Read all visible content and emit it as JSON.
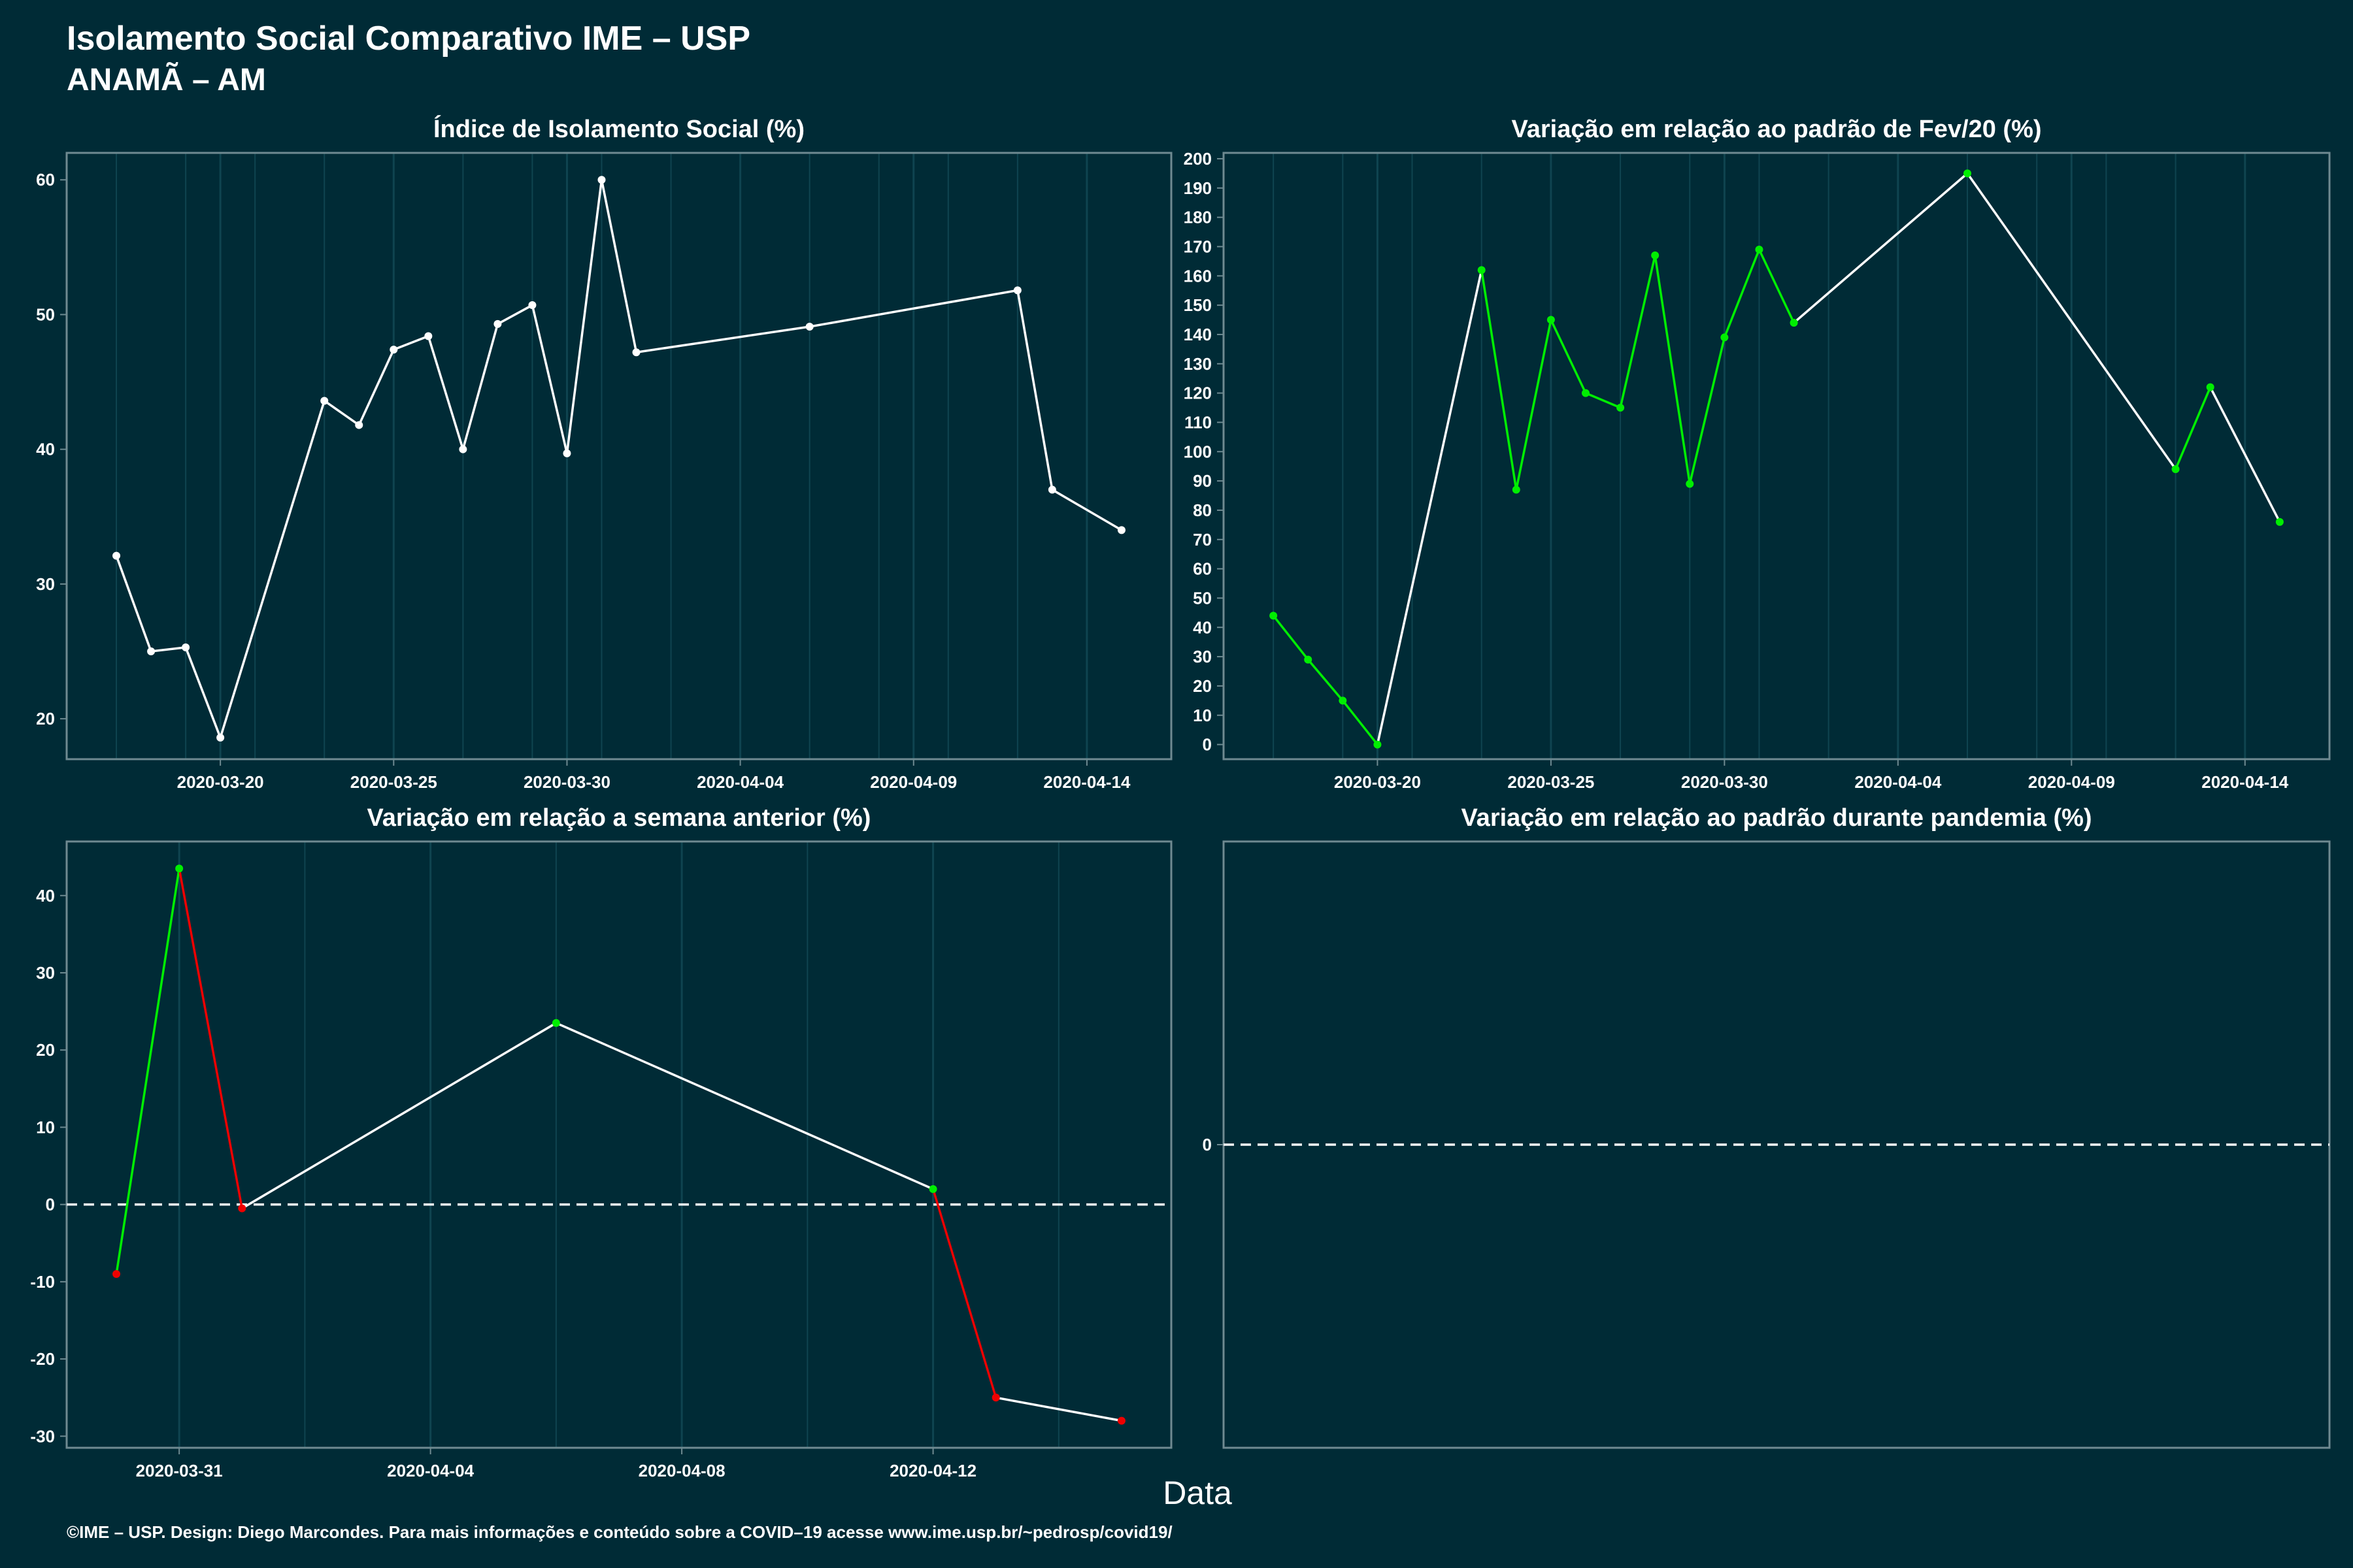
{
  "header": {
    "title": "Isolamento Social Comparativo IME – USP",
    "subtitle": "ANAMÃ – AM"
  },
  "footer": {
    "xlabel": "Data",
    "credit": "©IME – USP. Design: Diego Marcondes. Para mais informações e conteúdo sobre a COVID–19 acesse www.ime.usp.br/~pedrosp/covid19/"
  },
  "colors": {
    "background": "#002b36",
    "line": "#ffffff",
    "up": "#00ee00",
    "down": "#ee0000",
    "panel_border": "#6f8a91",
    "grid": "#0f4450"
  },
  "chart_data": [
    {
      "id": "isolamento",
      "type": "line",
      "title": "Índice de Isolamento Social (%)",
      "x_type": "date",
      "xlim": [
        "2020-03-17",
        "2020-04-15"
      ],
      "ylim": [
        17,
        62
      ],
      "x_ticks": [
        "2020-03-20",
        "2020-03-25",
        "2020-03-30",
        "2020-04-04",
        "2020-04-09",
        "2020-04-14"
      ],
      "y_ticks": [
        20,
        30,
        40,
        50,
        60
      ],
      "points": [
        [
          "2020-03-17",
          32.1
        ],
        [
          "2020-03-18",
          25.0
        ],
        [
          "2020-03-19",
          25.3
        ],
        [
          "2020-03-20",
          18.6
        ],
        [
          "2020-03-23",
          43.6
        ],
        [
          "2020-03-24",
          41.8
        ],
        [
          "2020-03-25",
          47.4
        ],
        [
          "2020-03-26",
          48.4
        ],
        [
          "2020-03-27",
          40.0
        ],
        [
          "2020-03-28",
          49.3
        ],
        [
          "2020-03-29",
          50.7
        ],
        [
          "2020-03-30",
          39.7
        ],
        [
          "2020-03-31",
          60.0
        ],
        [
          "2020-04-01",
          47.2
        ],
        [
          "2020-04-06",
          49.1
        ],
        [
          "2020-04-12",
          51.8
        ],
        [
          "2020-04-13",
          37.0
        ],
        [
          "2020-04-15",
          34.0
        ]
      ],
      "color_mode": "white"
    },
    {
      "id": "variacao_fev",
      "type": "line",
      "title": "Variação em relação ao padrão de Fev/20 (%)",
      "x_type": "date",
      "xlim": [
        "2020-03-17",
        "2020-04-15"
      ],
      "ylim": [
        -5,
        202
      ],
      "x_ticks": [
        "2020-03-20",
        "2020-03-25",
        "2020-03-30",
        "2020-04-04",
        "2020-04-09",
        "2020-04-14"
      ],
      "y_ticks": [
        0,
        10,
        20,
        30,
        40,
        50,
        60,
        70,
        80,
        90,
        100,
        110,
        120,
        130,
        140,
        150,
        160,
        170,
        180,
        190,
        200
      ],
      "points": [
        [
          "2020-03-17",
          44
        ],
        [
          "2020-03-18",
          29
        ],
        [
          "2020-03-19",
          15
        ],
        [
          "2020-03-20",
          0
        ],
        [
          "2020-03-23",
          162
        ],
        [
          "2020-03-24",
          87
        ],
        [
          "2020-03-25",
          145
        ],
        [
          "2020-03-26",
          120
        ],
        [
          "2020-03-27",
          115
        ],
        [
          "2020-03-28",
          167
        ],
        [
          "2020-03-29",
          89
        ],
        [
          "2020-03-30",
          139
        ],
        [
          "2020-03-31",
          169
        ],
        [
          "2020-04-01",
          144
        ],
        [
          "2020-04-06",
          195
        ],
        [
          "2020-04-12",
          94
        ],
        [
          "2020-04-13",
          122
        ],
        [
          "2020-04-15",
          76
        ]
      ],
      "color_mode": "consecutive"
    },
    {
      "id": "variacao_semana",
      "type": "line",
      "title": "Variação em relação a semana anterior (%)",
      "x_type": "date",
      "xlim": [
        "2020-03-30",
        "2020-04-15"
      ],
      "ylim": [
        -31.5,
        47
      ],
      "x_ticks": [
        "2020-03-31",
        "2020-04-04",
        "2020-04-08",
        "2020-04-12"
      ],
      "y_ticks": [
        -30,
        -20,
        -10,
        0,
        10,
        20,
        30,
        40
      ],
      "zero_line": 0,
      "points": [
        [
          "2020-03-30",
          -9
        ],
        [
          "2020-03-31",
          43.5
        ],
        [
          "2020-04-01",
          -0.5
        ],
        [
          "2020-04-06",
          23.5
        ],
        [
          "2020-04-12",
          2
        ],
        [
          "2020-04-13",
          -25
        ],
        [
          "2020-04-15",
          -28
        ]
      ],
      "color_mode": "sign"
    },
    {
      "id": "variacao_pandemia",
      "type": "line",
      "title": "Variação em relação ao padrão durante pandemia (%)",
      "x_type": "date",
      "ylim": [
        -1,
        1
      ],
      "x_ticks": [],
      "y_ticks": [
        0
      ],
      "zero_line": 0,
      "points": [],
      "color_mode": "sign"
    }
  ]
}
